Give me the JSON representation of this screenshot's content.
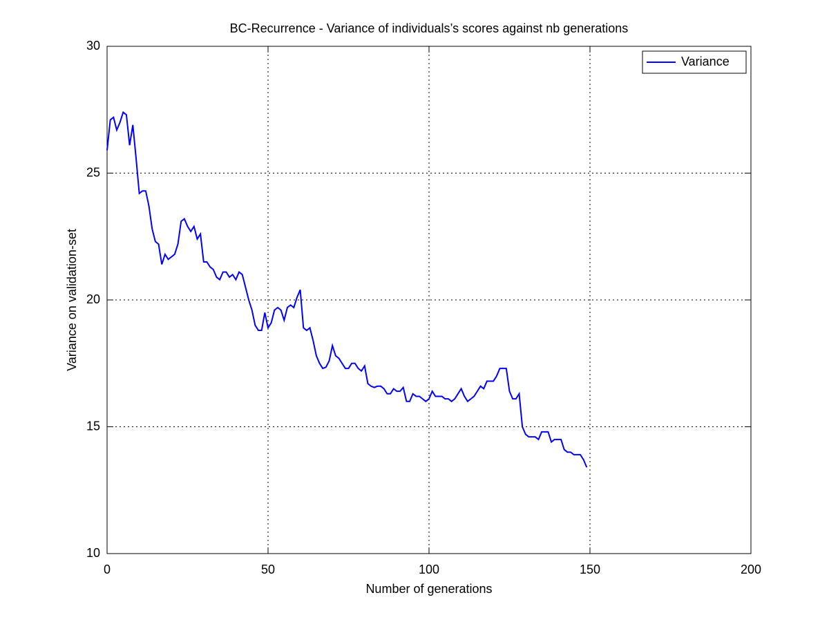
{
  "chart_data": {
    "type": "line",
    "title": "BC-Recurrence - Variance of individuals’s scores against nb generations",
    "x_label": "Number of generations",
    "y_label": "Variance on validation-set",
    "x": [
      0,
      1,
      2,
      3,
      4,
      5,
      6,
      7,
      8,
      9,
      10,
      11,
      12,
      13,
      14,
      15,
      16,
      17,
      18,
      19,
      20,
      21,
      22,
      23,
      24,
      25,
      26,
      27,
      28,
      29,
      30,
      31,
      32,
      33,
      34,
      35,
      36,
      37,
      38,
      39,
      40,
      41,
      42,
      43,
      44,
      45,
      46,
      47,
      48,
      49,
      50,
      51,
      52,
      53,
      54,
      55,
      56,
      57,
      58,
      59,
      60,
      61,
      62,
      63,
      64,
      65,
      66,
      67,
      68,
      69,
      70,
      71,
      72,
      73,
      74,
      75,
      76,
      77,
      78,
      79,
      80,
      81,
      82,
      83,
      84,
      85,
      86,
      87,
      88,
      89,
      90,
      91,
      92,
      93,
      94,
      95,
      96,
      97,
      98,
      99,
      100,
      101,
      102,
      103,
      104,
      105,
      106,
      107,
      108,
      109,
      110,
      111,
      112,
      113,
      114,
      115,
      116,
      117,
      118,
      119,
      120,
      121,
      122,
      123,
      124,
      125,
      126,
      127,
      128,
      129,
      130,
      131,
      132,
      133,
      134,
      135,
      136,
      137,
      138,
      139,
      140,
      141,
      142,
      143,
      144,
      145,
      146,
      147,
      148,
      149
    ],
    "series": [
      {
        "name": "Variance",
        "color": "#0000ff",
        "values": [
          25.9,
          27.1,
          27.2,
          26.7,
          27.0,
          27.4,
          27.3,
          26.1,
          26.9,
          25.6,
          24.2,
          24.3,
          24.3,
          23.7,
          22.8,
          22.3,
          22.2,
          21.4,
          21.8,
          21.6,
          21.7,
          21.8,
          22.2,
          23.1,
          23.2,
          22.9,
          22.7,
          22.9,
          22.4,
          22.6,
          21.5,
          21.5,
          21.3,
          21.2,
          20.9,
          20.8,
          21.1,
          21.1,
          20.9,
          21.0,
          20.8,
          21.1,
          21.0,
          20.5,
          20.0,
          19.6,
          19.0,
          18.8,
          18.8,
          19.5,
          18.9,
          19.1,
          19.6,
          19.7,
          19.6,
          19.2,
          19.7,
          19.8,
          19.7,
          20.1,
          20.4,
          18.9,
          18.8,
          18.9,
          18.4,
          17.8,
          17.5,
          17.3,
          17.35,
          17.6,
          18.2,
          17.8,
          17.7,
          17.5,
          17.3,
          17.3,
          17.5,
          17.5,
          17.3,
          17.2,
          17.4,
          16.7,
          16.6,
          16.55,
          16.6,
          16.6,
          16.5,
          16.3,
          16.3,
          16.5,
          16.4,
          16.4,
          16.55,
          16.0,
          16.0,
          16.3,
          16.2,
          16.2,
          16.1,
          16.0,
          16.1,
          16.4,
          16.2,
          16.2,
          16.2,
          16.1,
          16.1,
          16.0,
          16.1,
          16.3,
          16.5,
          16.2,
          16.0,
          16.1,
          16.2,
          16.4,
          16.6,
          16.5,
          16.8,
          16.8,
          16.8,
          17.0,
          17.3,
          17.3,
          17.3,
          16.4,
          16.1,
          16.1,
          16.3,
          15.0,
          14.7,
          14.6,
          14.6,
          14.6,
          14.5,
          14.8,
          14.8,
          14.8,
          14.4,
          14.5,
          14.5,
          14.5,
          14.1,
          14.0,
          14.0,
          13.9,
          13.9,
          13.9,
          13.7,
          13.4
        ]
      }
    ],
    "xlim": [
      0,
      200
    ],
    "xticks": [
      0,
      50,
      100,
      150,
      200
    ],
    "ylim": [
      10,
      30
    ],
    "yticks": [
      10,
      15,
      20,
      25,
      30
    ],
    "grid": true,
    "legend": "upper right"
  }
}
